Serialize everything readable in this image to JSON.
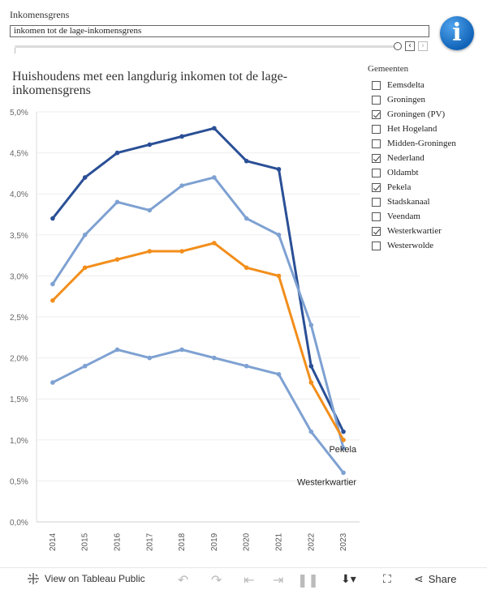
{
  "filter": {
    "label": "Inkomensgrens",
    "value": "inkomen tot de lage-inkomensgrens",
    "prev_icon": "chevron-left-icon",
    "next_icon": "chevron-right-icon"
  },
  "info": {
    "glyph": "i"
  },
  "legend": {
    "title": "Gemeenten",
    "items": [
      {
        "label": "Eemsdelta",
        "checked": false
      },
      {
        "label": "Groningen",
        "checked": false
      },
      {
        "label": "Groningen (PV)",
        "checked": true
      },
      {
        "label": "Het Hogeland",
        "checked": false
      },
      {
        "label": "Midden-Groningen",
        "checked": false
      },
      {
        "label": "Nederland",
        "checked": true
      },
      {
        "label": "Oldambt",
        "checked": false
      },
      {
        "label": "Pekela",
        "checked": true
      },
      {
        "label": "Stadskanaal",
        "checked": false
      },
      {
        "label": "Veendam",
        "checked": false
      },
      {
        "label": "Westerkwartier",
        "checked": true
      },
      {
        "label": "Westerwolde",
        "checked": false
      }
    ]
  },
  "chart_data": {
    "type": "line",
    "title": "Huishoudens met een langdurig inkomen tot de lage-inkomensgrens",
    "title_lines": [
      "Huishoudens met een langdurig inkomen tot de lage-",
      "inkomensgrens"
    ],
    "xlabel": "",
    "ylabel": "",
    "categories": [
      "2014",
      "2015",
      "2016",
      "2017",
      "2018",
      "2019",
      "2020",
      "2021",
      "2022",
      "2023"
    ],
    "ylim": [
      0,
      5
    ],
    "yticks": [
      0,
      0.5,
      1.0,
      1.5,
      2.0,
      2.5,
      3.0,
      3.5,
      4.0,
      4.5,
      5.0
    ],
    "ytick_labels": [
      "0,0%",
      "0,5%",
      "1,0%",
      "1,5%",
      "2,0%",
      "2,5%",
      "3,0%",
      "3,5%",
      "4,0%",
      "4,5%",
      "5,0%"
    ],
    "grid": true,
    "series": [
      {
        "name": "Series 1 (dark blue)",
        "color": "#2a4f96",
        "values": [
          3.7,
          4.2,
          4.5,
          4.6,
          4.7,
          4.8,
          4.4,
          4.3,
          1.9,
          1.1
        ],
        "end_label": ""
      },
      {
        "name": "Series 2 (light blue)",
        "color": "#7ea1d2",
        "values": [
          2.9,
          3.5,
          3.9,
          3.8,
          4.1,
          4.2,
          3.7,
          3.5,
          2.4,
          0.9
        ],
        "end_label": ""
      },
      {
        "name": "Pekela",
        "color": "#f28e1b",
        "values": [
          2.7,
          3.1,
          3.2,
          3.3,
          3.3,
          3.4,
          3.1,
          3.0,
          1.7,
          1.0
        ],
        "end_label": "Pekela"
      },
      {
        "name": "Westerkwartier",
        "color": "#7ea1d2",
        "values": [
          1.7,
          1.9,
          2.1,
          2.0,
          2.1,
          2.0,
          1.9,
          1.8,
          1.1,
          0.6
        ],
        "end_label": "Westerkwartier"
      }
    ]
  },
  "footer": {
    "view_label": "View on Tableau Public",
    "share_label": "Share",
    "icons": [
      "tableau-logo-icon",
      "undo-icon",
      "redo-icon",
      "revert-icon",
      "forward-icon",
      "pause-icon",
      "download-icon",
      "fullscreen-icon",
      "share-icon"
    ]
  }
}
